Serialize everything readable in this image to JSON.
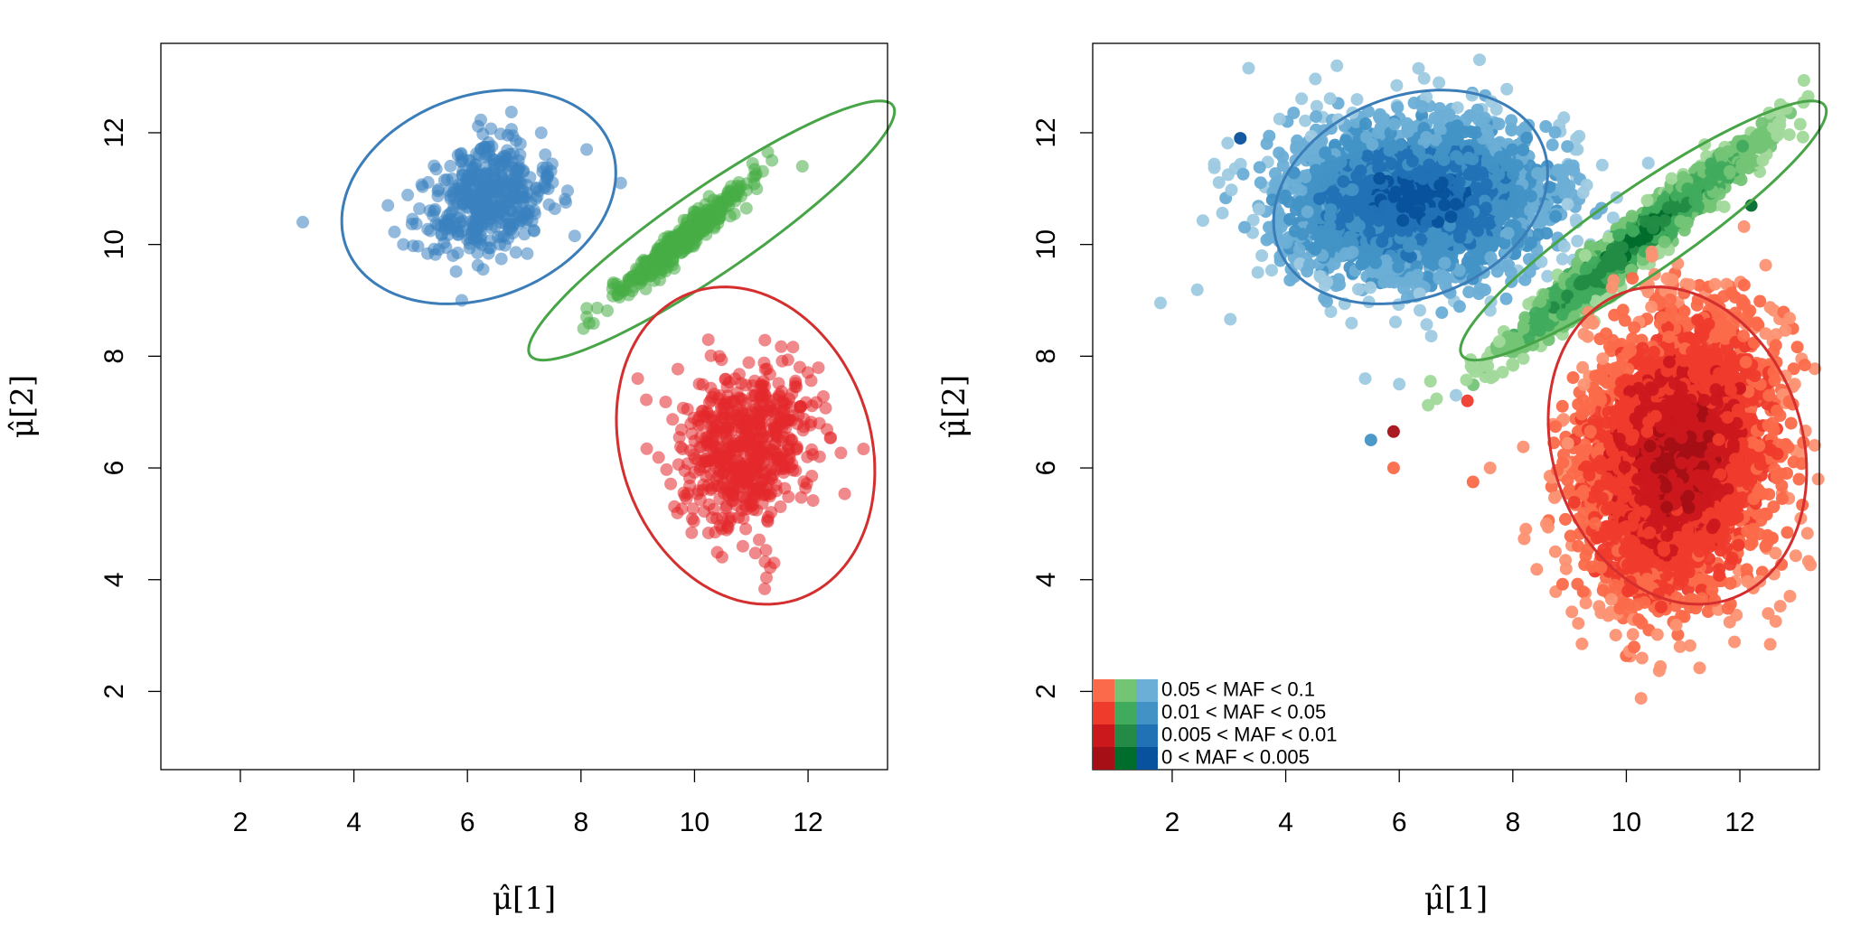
{
  "chart_data": [
    {
      "type": "scatter",
      "panel": "left",
      "xlabel": "μ̂[1]",
      "ylabel": "μ̂[2]",
      "xlim": [
        0.6,
        13.4
      ],
      "ylim": [
        0.6,
        13.6
      ],
      "xticks": [
        "2",
        "4",
        "6",
        "8",
        "10",
        "12"
      ],
      "yticks": [
        "2",
        "4",
        "6",
        "8",
        "10",
        "12"
      ],
      "box": true,
      "grid": false,
      "clusters": [
        {
          "color": "#3a7db8",
          "point_color": "#3b81c0",
          "center": [
            6.3,
            10.8
          ],
          "spread": [
            0.55,
            0.5
          ],
          "corr": 0.2,
          "n": 450,
          "ellipse": {
            "center": [
              6.2,
              10.85
            ],
            "rx": 2.5,
            "ry": 1.8,
            "angle_deg": 22
          }
        },
        {
          "color": "#47a447",
          "point_color": "#47ad45",
          "center": [
            9.8,
            10.1
          ],
          "spread": [
            0.55,
            0.5
          ],
          "corr": 0.96,
          "n": 450,
          "ellipse": {
            "center": [
              10.3,
              10.25
            ],
            "rx": 3.9,
            "ry": 0.75,
            "angle_deg": 35
          }
        },
        {
          "color": "#d42e2e",
          "point_color": "#e3282b",
          "center": [
            10.9,
            6.4
          ],
          "spread": [
            0.6,
            0.75
          ],
          "corr": 0.1,
          "n": 600,
          "ellipse": {
            "center": [
              10.9,
              6.4
            ],
            "rx": 2.2,
            "ry": 2.9,
            "angle_deg": 18
          }
        }
      ],
      "outliers": [
        {
          "x": 3.1,
          "y": 10.4,
          "color": "#3b81c0"
        },
        {
          "x": 4.6,
          "y": 10.7,
          "color": "#3b81c0"
        },
        {
          "x": 5.9,
          "y": 9.0,
          "color": "#3b81c0"
        },
        {
          "x": 8.1,
          "y": 11.7,
          "color": "#3b81c0"
        },
        {
          "x": 8.7,
          "y": 11.1,
          "color": "#3b81c0"
        },
        {
          "x": 7.3,
          "y": 12.0,
          "color": "#3b81c0"
        },
        {
          "x": 11.9,
          "y": 11.4,
          "color": "#47ad45"
        },
        {
          "x": 8.1,
          "y": 8.7,
          "color": "#47ad45"
        },
        {
          "x": 9.0,
          "y": 7.6,
          "color": "#e3282b"
        },
        {
          "x": 11.4,
          "y": 4.3,
          "color": "#e3282b"
        },
        {
          "x": 12.2,
          "y": 6.8,
          "color": "#e3282b"
        },
        {
          "x": 10.6,
          "y": 5.1,
          "color": "#e3282b"
        }
      ]
    },
    {
      "type": "scatter",
      "panel": "right",
      "xlabel": "μ̂[1]",
      "ylabel": "μ̂[2]",
      "xlim": [
        0.6,
        13.4
      ],
      "ylim": [
        0.6,
        13.6
      ],
      "xticks": [
        "2",
        "4",
        "6",
        "8",
        "10",
        "12"
      ],
      "yticks": [
        "2",
        "4",
        "6",
        "8",
        "10",
        "12"
      ],
      "box": true,
      "grid": false,
      "legend": {
        "placement": "bottom-left",
        "entries": [
          "0.05 < MAF < 0.1",
          "0.01 < MAF < 0.05",
          "0.005 < MAF < 0.01",
          "0 < MAF < 0.005"
        ],
        "swatches": [
          [
            "#fb6a4a",
            "#74c476",
            "#6baed6"
          ],
          [
            "#ef3b2c",
            "#41ab5d",
            "#4292c6"
          ],
          [
            "#cb181d",
            "#238b45",
            "#2171b5"
          ],
          [
            "#a50f15",
            "#006d2c",
            "#08519c"
          ]
        ]
      },
      "ellipse_colors": [
        "#3a7db8",
        "#47a447",
        "#d42e2e"
      ],
      "clusters": [
        {
          "group": "blue",
          "palette": [
            "#9ecae1",
            "#6baed6",
            "#4292c6",
            "#2171b5",
            "#08519c"
          ],
          "center": [
            6.3,
            10.8
          ],
          "spread": [
            1.2,
            0.7
          ],
          "corr": 0.05,
          "n": 2600
        },
        {
          "group": "green",
          "palette": [
            "#a1d99b",
            "#74c476",
            "#41ab5d",
            "#238b45",
            "#006d2c"
          ],
          "center": [
            10.1,
            10.0
          ],
          "spread": [
            1.0,
            0.85
          ],
          "corr": 0.97,
          "n": 2000
        },
        {
          "group": "red",
          "palette": [
            "#fc9272",
            "#fb6a4a",
            "#ef3b2c",
            "#cb181d",
            "#a50f15"
          ],
          "center": [
            10.9,
            6.2
          ],
          "spread": [
            0.85,
            1.25
          ],
          "corr": 0.15,
          "n": 3200
        }
      ],
      "outliers": [
        {
          "x": 5.5,
          "y": 6.5,
          "color": "#4292c6"
        },
        {
          "x": 5.4,
          "y": 7.6,
          "color": "#9ecae1"
        },
        {
          "x": 5.9,
          "y": 6.0,
          "color": "#fb6a4a"
        },
        {
          "x": 5.9,
          "y": 6.65,
          "color": "#a50f15"
        },
        {
          "x": 7.2,
          "y": 7.2,
          "color": "#ef3b2c"
        },
        {
          "x": 7.6,
          "y": 6.0,
          "color": "#fc9272"
        },
        {
          "x": 7.3,
          "y": 5.75,
          "color": "#fb6a4a"
        },
        {
          "x": 6.0,
          "y": 7.5,
          "color": "#9ecae1"
        },
        {
          "x": 7.0,
          "y": 7.3,
          "color": "#9ecae1"
        },
        {
          "x": 12.2,
          "y": 10.7,
          "color": "#006d2c"
        },
        {
          "x": 12.6,
          "y": 4.1,
          "color": "#fc9272"
        },
        {
          "x": 3.2,
          "y": 11.9,
          "color": "#08519c"
        }
      ]
    }
  ]
}
